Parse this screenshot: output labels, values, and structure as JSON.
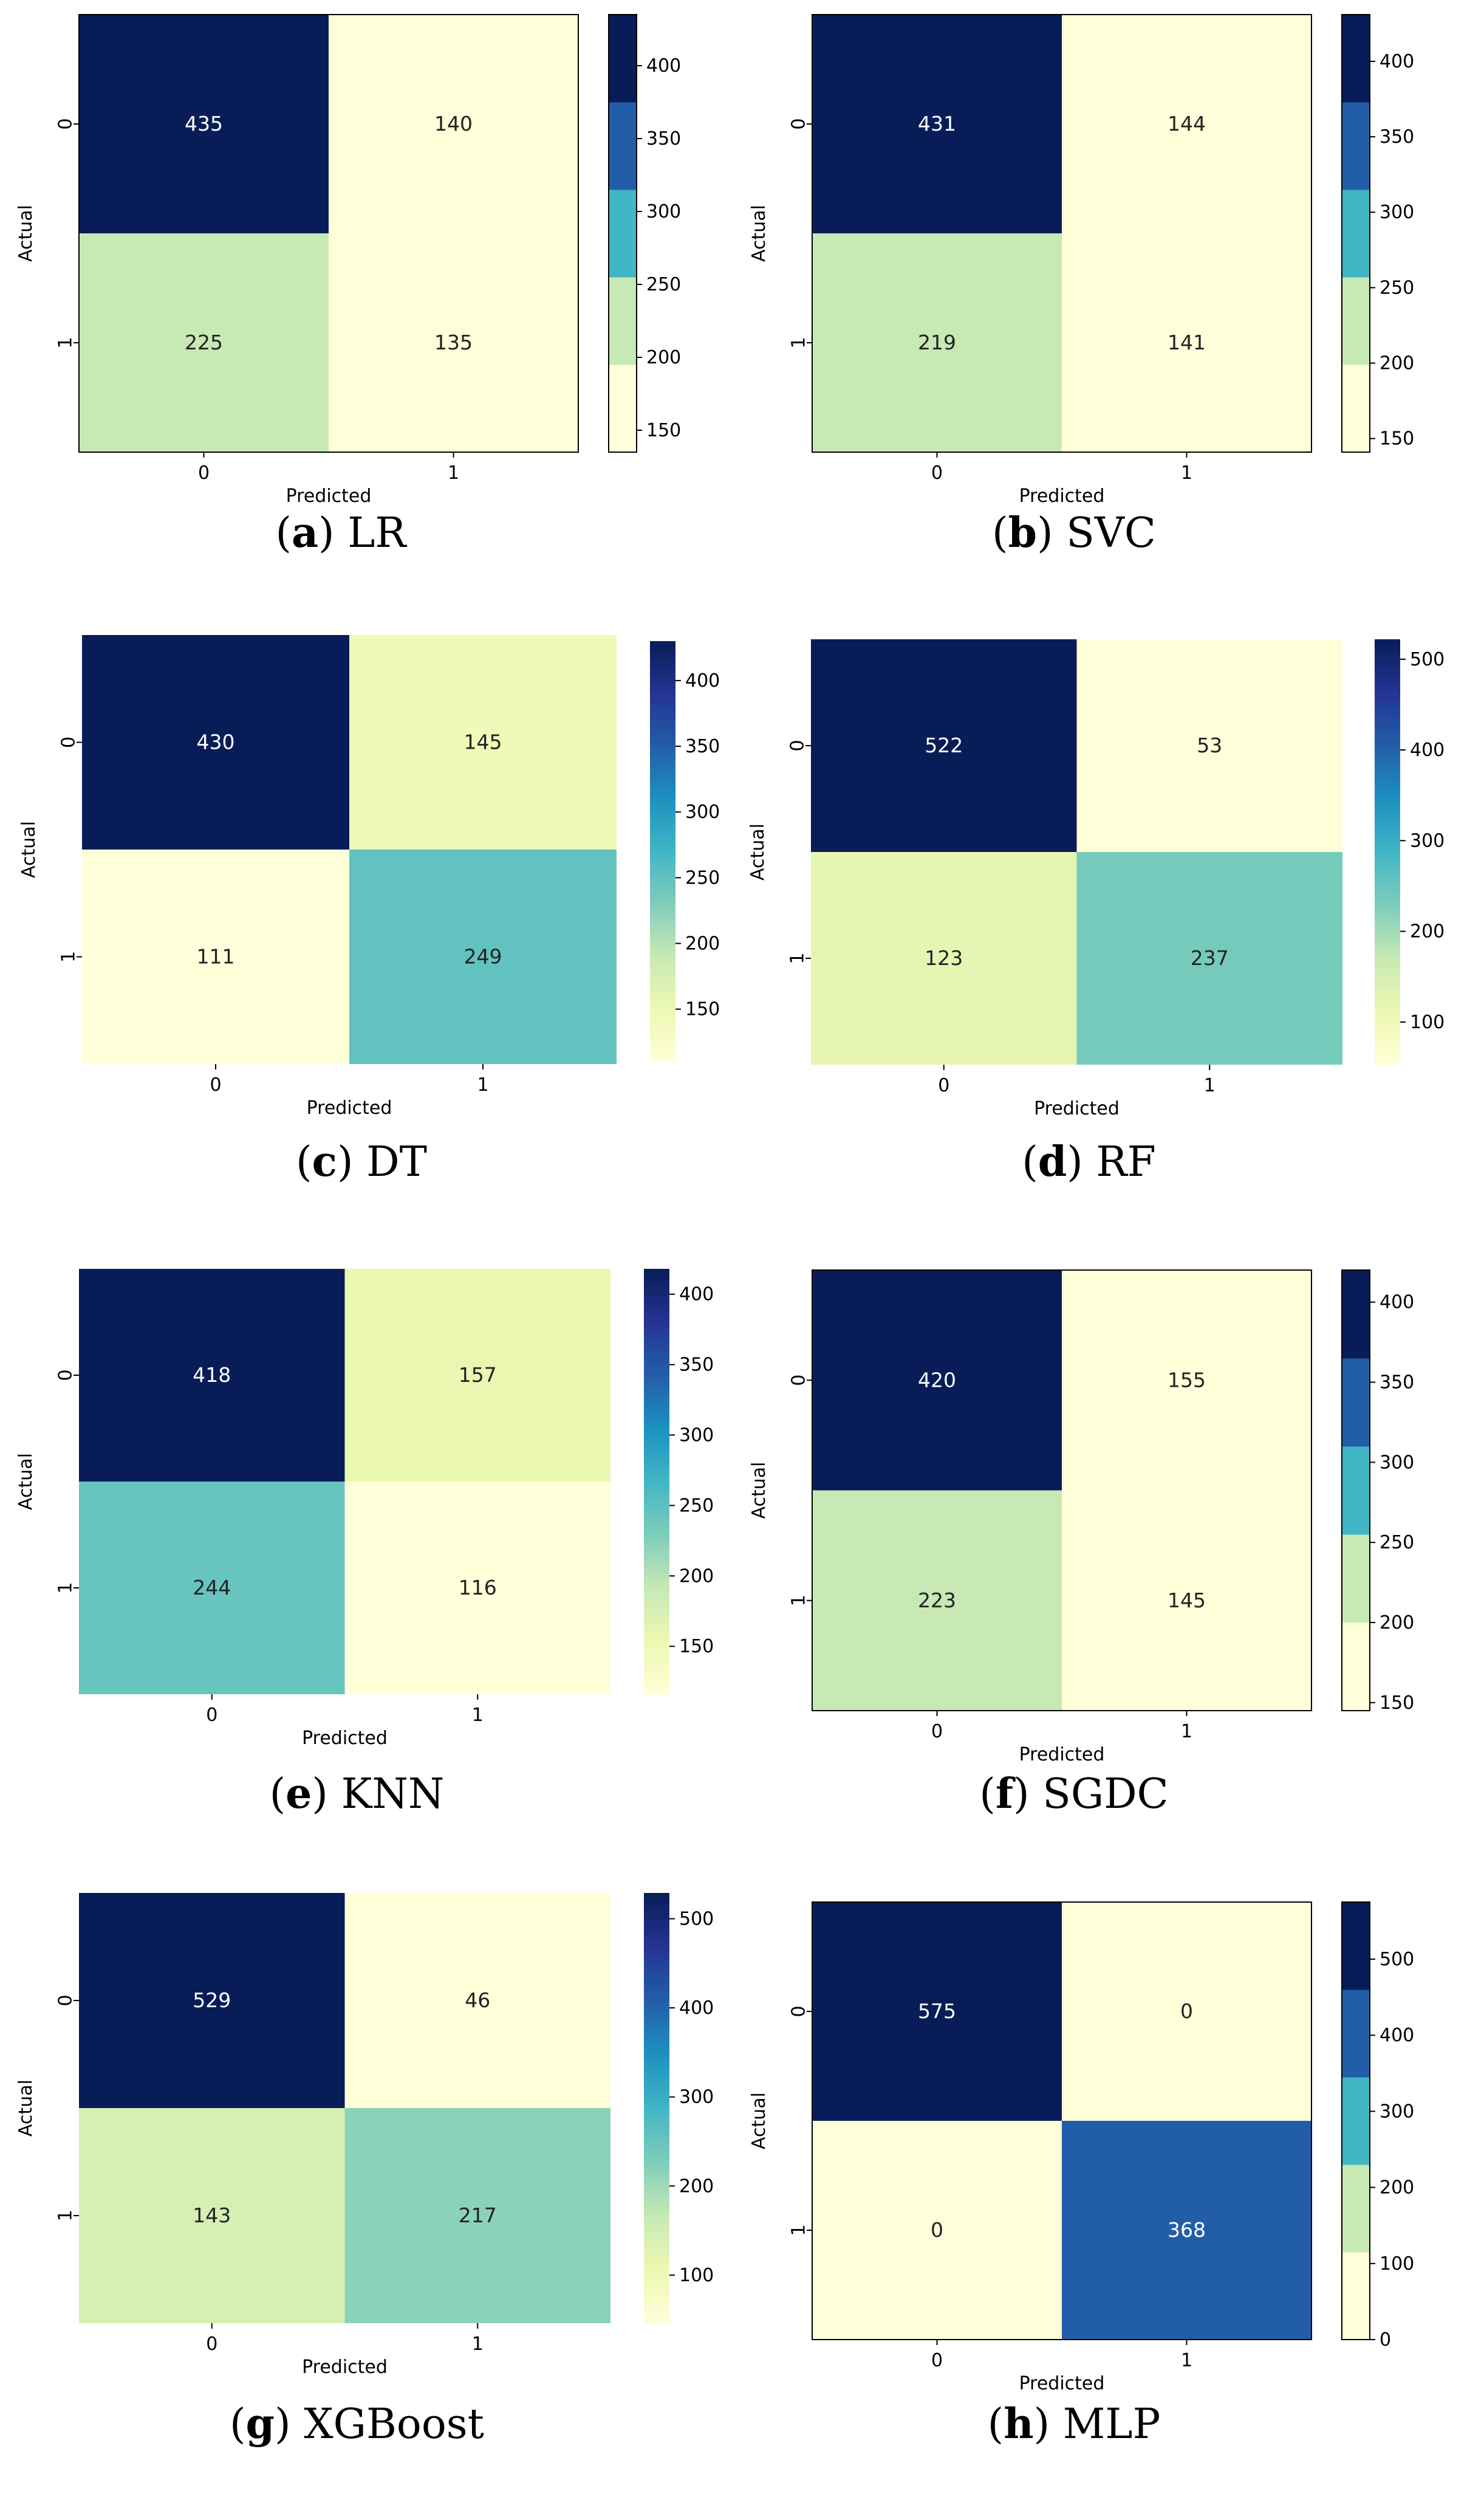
{
  "chart_data": [
    {
      "type": "heatmap",
      "id": "lr",
      "caption_letter": "a",
      "caption_name": "LR",
      "xlabel": "Predicted",
      "ylabel": "Actual",
      "x_ticks": [
        "0",
        "1"
      ],
      "y_ticks": [
        "0",
        "1"
      ],
      "matrix": [
        [
          435,
          140
        ],
        [
          225,
          135
        ]
      ],
      "cbar_ticks": [
        150,
        200,
        250,
        300,
        350,
        400
      ],
      "vmin": 135,
      "vmax": 435,
      "cmap": "discrete"
    },
    {
      "type": "heatmap",
      "id": "svc",
      "caption_letter": "b",
      "caption_name": "SVC",
      "xlabel": "Predicted",
      "ylabel": "Actual",
      "x_ticks": [
        "0",
        "1"
      ],
      "y_ticks": [
        "0",
        "1"
      ],
      "matrix": [
        [
          431,
          144
        ],
        [
          219,
          141
        ]
      ],
      "cbar_ticks": [
        150,
        200,
        250,
        300,
        350,
        400
      ],
      "vmin": 141,
      "vmax": 431,
      "cmap": "discrete"
    },
    {
      "type": "heatmap",
      "id": "dt",
      "caption_letter": "c",
      "caption_name": "DT",
      "xlabel": "Predicted",
      "ylabel": "Actual",
      "x_ticks": [
        "0",
        "1"
      ],
      "y_ticks": [
        "0",
        "1"
      ],
      "matrix": [
        [
          430,
          145
        ],
        [
          111,
          249
        ]
      ],
      "cbar_ticks": [
        150,
        200,
        250,
        300,
        350,
        400
      ],
      "vmin": 111,
      "vmax": 430,
      "cmap": "continuous"
    },
    {
      "type": "heatmap",
      "id": "rf",
      "caption_letter": "d",
      "caption_name": "RF",
      "xlabel": "Predicted",
      "ylabel": "Actual",
      "x_ticks": [
        "0",
        "1"
      ],
      "y_ticks": [
        "0",
        "1"
      ],
      "matrix": [
        [
          522,
          53
        ],
        [
          123,
          237
        ]
      ],
      "cbar_ticks": [
        100,
        200,
        300,
        400,
        500
      ],
      "vmin": 53,
      "vmax": 522,
      "cmap": "continuous"
    },
    {
      "type": "heatmap",
      "id": "knn",
      "caption_letter": "e",
      "caption_name": "KNN",
      "xlabel": "Predicted",
      "ylabel": "Actual",
      "x_ticks": [
        "0",
        "1"
      ],
      "y_ticks": [
        "0",
        "1"
      ],
      "matrix": [
        [
          418,
          157
        ],
        [
          244,
          116
        ]
      ],
      "cbar_ticks": [
        150,
        200,
        250,
        300,
        350,
        400
      ],
      "vmin": 116,
      "vmax": 418,
      "cmap": "continuous"
    },
    {
      "type": "heatmap",
      "id": "sgdc",
      "caption_letter": "f",
      "caption_name": "SGDC",
      "xlabel": "Predicted",
      "ylabel": "Actual",
      "x_ticks": [
        "0",
        "1"
      ],
      "y_ticks": [
        "0",
        "1"
      ],
      "matrix": [
        [
          420,
          155
        ],
        [
          223,
          145
        ]
      ],
      "cbar_ticks": [
        150,
        200,
        250,
        300,
        350,
        400
      ],
      "vmin": 145,
      "vmax": 420,
      "cmap": "discrete"
    },
    {
      "type": "heatmap",
      "id": "xgboost",
      "caption_letter": "g",
      "caption_name": "XGBoost",
      "xlabel": "Predicted",
      "ylabel": "Actual",
      "x_ticks": [
        "0",
        "1"
      ],
      "y_ticks": [
        "0",
        "1"
      ],
      "matrix": [
        [
          529,
          46
        ],
        [
          143,
          217
        ]
      ],
      "cbar_ticks": [
        100,
        200,
        300,
        400,
        500
      ],
      "vmin": 46,
      "vmax": 529,
      "cmap": "continuous"
    },
    {
      "type": "heatmap",
      "id": "mlp",
      "caption_letter": "h",
      "caption_name": "MLP",
      "xlabel": "Predicted",
      "ylabel": "Actual",
      "x_ticks": [
        "0",
        "1"
      ],
      "y_ticks": [
        "0",
        "1"
      ],
      "matrix": [
        [
          575,
          0
        ],
        [
          0,
          368
        ]
      ],
      "cbar_ticks": [
        0,
        100,
        200,
        300,
        400,
        500
      ],
      "vmin": 0,
      "vmax": 575,
      "cmap": "discrete"
    }
  ],
  "colormap": {
    "name": "YlGnBu",
    "stops": [
      "#ffffd9",
      "#edf8b1",
      "#c7e9b4",
      "#7fcdbb",
      "#41b6c4",
      "#1d91c0",
      "#225ea8",
      "#253494",
      "#081d58"
    ],
    "discrete_bands": [
      "#ffffd9",
      "#c7e9b4",
      "#41b6c4",
      "#225ea8",
      "#081d58"
    ]
  }
}
